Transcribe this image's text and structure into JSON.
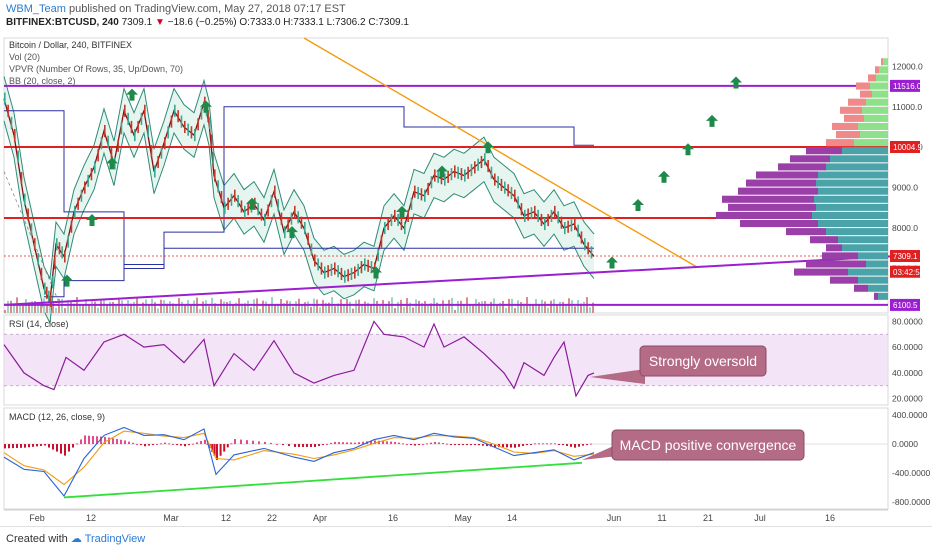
{
  "header": {
    "author": "WBM_Team",
    "published": "published on TradingView.com, May 27, 2018 07:17 EST",
    "symbol": "BITFINEX:BTCUSD, 240",
    "last": "7309.1",
    "change": "−18.6 (−0.25%)",
    "ohlc": "O:7333.0  H:7333.1  L:7306.2  C:7309.1"
  },
  "footer": {
    "created": "Created with",
    "brand": "TradingView"
  },
  "colors": {
    "price": "#8b0e0e",
    "bands": "#2e8b76",
    "bandFill": "#d6efe6",
    "vpvrUp": "#4aa3a8",
    "vpvrDown": "#9a3fa8",
    "vpvrUp2": "#8fe08a",
    "vpvrDown2": "#f08a8a",
    "red": "#e02020",
    "purple": "#9b1fd0",
    "orange": "#f39c12",
    "blue": "#2a2fa0",
    "arrow": "#1e8a4a",
    "rsi": "#8a1a9a",
    "macd": "#2b63d6",
    "signal": "#f39c12",
    "green": "#33e03a"
  },
  "chart_data": [
    {
      "type": "line",
      "title": "Bitcoin / Dollar, 240, BITFINEX",
      "legend": [
        "Vol (20)",
        "VPVR (Number Of Rows, 35, Up/Down, 70)",
        "BB (20, close, 2)"
      ],
      "x_ticks": [
        "Feb",
        "12",
        "Mar",
        "12",
        "22",
        "Apr",
        "16",
        "May",
        "14",
        "Jun",
        "11",
        "21",
        "Jul",
        "16"
      ],
      "y_ticks": [
        12000,
        11000,
        10000,
        9000,
        8000,
        7000
      ],
      "ylim": [
        5900,
        12700
      ],
      "price_labels": [
        {
          "label": "11516.0",
          "value": 11516,
          "kind": "purple"
        },
        {
          "label": "10004.9",
          "value": 10005,
          "kind": "red"
        },
        {
          "label": "7309.1",
          "value": 7309,
          "kind": "red"
        },
        {
          "label": "03:42:54",
          "value": 6920,
          "kind": "red"
        },
        {
          "label": "6100.5",
          "value": 6100,
          "kind": "purple"
        }
      ],
      "horizontal_levels": [
        {
          "value": 11516,
          "color": "purple"
        },
        {
          "value": 10005,
          "color": "red"
        },
        {
          "value": 8250,
          "color": "red"
        },
        {
          "value": 6100,
          "color": "purple"
        }
      ],
      "close_series": [
        [
          0,
          11200
        ],
        [
          10,
          10300
        ],
        [
          20,
          8700
        ],
        [
          30,
          7600
        ],
        [
          40,
          6500
        ],
        [
          46,
          6200
        ],
        [
          52,
          7600
        ],
        [
          60,
          7300
        ],
        [
          70,
          8400
        ],
        [
          80,
          9000
        ],
        [
          90,
          9500
        ],
        [
          100,
          10400
        ],
        [
          110,
          9600
        ],
        [
          120,
          10900
        ],
        [
          130,
          10300
        ],
        [
          140,
          10900
        ],
        [
          150,
          9400
        ],
        [
          160,
          10100
        ],
        [
          170,
          10900
        ],
        [
          180,
          10500
        ],
        [
          190,
          10300
        ],
        [
          200,
          11100
        ],
        [
          205,
          10600
        ],
        [
          210,
          9300
        ],
        [
          220,
          8500
        ],
        [
          230,
          8800
        ],
        [
          240,
          8400
        ],
        [
          250,
          8600
        ],
        [
          260,
          8200
        ],
        [
          270,
          8900
        ],
        [
          280,
          7900
        ],
        [
          290,
          8400
        ],
        [
          300,
          8000
        ],
        [
          310,
          7200
        ],
        [
          320,
          6900
        ],
        [
          330,
          7000
        ],
        [
          340,
          6800
        ],
        [
          350,
          6900
        ],
        [
          360,
          7100
        ],
        [
          370,
          7000
        ],
        [
          380,
          8000
        ],
        [
          390,
          8300
        ],
        [
          400,
          8000
        ],
        [
          410,
          8900
        ],
        [
          420,
          8800
        ],
        [
          430,
          9300
        ],
        [
          440,
          9200
        ],
        [
          450,
          9400
        ],
        [
          460,
          9300
        ],
        [
          470,
          9500
        ],
        [
          480,
          9700
        ],
        [
          490,
          9200
        ],
        [
          500,
          9000
        ],
        [
          510,
          8800
        ],
        [
          520,
          8300
        ],
        [
          530,
          8400
        ],
        [
          540,
          8100
        ],
        [
          550,
          8400
        ],
        [
          560,
          8000
        ],
        [
          570,
          8100
        ],
        [
          580,
          7600
        ],
        [
          590,
          7300
        ]
      ],
      "trendlines": [
        {
          "from": [
            300,
            12700
          ],
          "to": [
            692,
            7050
          ],
          "color": "orange"
        },
        {
          "from": [
            0,
            6100
          ],
          "to": [
            886,
            7300
          ],
          "color": "purple"
        }
      ],
      "projection_arrows": [
        [
          612,
          7150
        ],
        [
          638,
          8570
        ],
        [
          664,
          9270
        ],
        [
          688,
          9950
        ],
        [
          712,
          10650
        ],
        [
          736,
          11600
        ]
      ],
      "vpvr_profile": [
        {
          "price": 12100,
          "up": 5,
          "down": 2
        },
        {
          "price": 11900,
          "up": 9,
          "down": 4
        },
        {
          "price": 11700,
          "up": 12,
          "down": 8
        },
        {
          "price": 11500,
          "up": 18,
          "down": 14
        },
        {
          "price": 11300,
          "up": 16,
          "down": 12
        },
        {
          "price": 11100,
          "up": 22,
          "down": 18
        },
        {
          "price": 10900,
          "up": 26,
          "down": 22
        },
        {
          "price": 10700,
          "up": 24,
          "down": 20
        },
        {
          "price": 10500,
          "up": 30,
          "down": 26
        },
        {
          "price": 10300,
          "up": 28,
          "down": 24
        },
        {
          "price": 10100,
          "up": 34,
          "down": 28
        },
        {
          "price": 9900,
          "up": 46,
          "down": 36
        },
        {
          "price": 9700,
          "up": 58,
          "down": 40
        },
        {
          "price": 9500,
          "up": 62,
          "down": 48
        },
        {
          "price": 9300,
          "up": 70,
          "down": 62
        },
        {
          "price": 9100,
          "up": 72,
          "down": 70
        },
        {
          "price": 8900,
          "up": 70,
          "down": 80
        },
        {
          "price": 8700,
          "up": 74,
          "down": 92
        },
        {
          "price": 8500,
          "up": 72,
          "down": 88
        },
        {
          "price": 8300,
          "up": 76,
          "down": 96
        },
        {
          "price": 8100,
          "up": 70,
          "down": 78
        },
        {
          "price": 7900,
          "up": 62,
          "down": 40
        },
        {
          "price": 7700,
          "up": 50,
          "down": 28
        },
        {
          "price": 7500,
          "up": 46,
          "down": 16
        },
        {
          "price": 7300,
          "up": 30,
          "down": 36
        },
        {
          "price": 7100,
          "up": 22,
          "down": 60
        },
        {
          "price": 6900,
          "up": 40,
          "down": 54
        },
        {
          "price": 6700,
          "up": 30,
          "down": 28
        },
        {
          "price": 6500,
          "up": 20,
          "down": 14
        },
        {
          "price": 6300,
          "up": 10,
          "down": 4
        }
      ]
    },
    {
      "type": "line",
      "title": "RSI (14, close)",
      "y_ticks": [
        80,
        60,
        40,
        20
      ],
      "ylim": [
        15,
        85
      ],
      "band": [
        30,
        70
      ],
      "annotation": "Strongly oversold",
      "values": [
        [
          0,
          62
        ],
        [
          20,
          40
        ],
        [
          40,
          30
        ],
        [
          50,
          27
        ],
        [
          62,
          52
        ],
        [
          80,
          42
        ],
        [
          100,
          64
        ],
        [
          120,
          70
        ],
        [
          140,
          60
        ],
        [
          160,
          62
        ],
        [
          180,
          48
        ],
        [
          200,
          66
        ],
        [
          210,
          30
        ],
        [
          230,
          55
        ],
        [
          250,
          42
        ],
        [
          270,
          65
        ],
        [
          290,
          40
        ],
        [
          310,
          32
        ],
        [
          330,
          38
        ],
        [
          350,
          42
        ],
        [
          370,
          80
        ],
        [
          380,
          70
        ],
        [
          400,
          68
        ],
        [
          420,
          60
        ],
        [
          430,
          78
        ],
        [
          440,
          60
        ],
        [
          460,
          68
        ],
        [
          480,
          55
        ],
        [
          500,
          40
        ],
        [
          510,
          28
        ],
        [
          520,
          48
        ],
        [
          540,
          38
        ],
        [
          550,
          52
        ],
        [
          560,
          64
        ],
        [
          572,
          22
        ],
        [
          584,
          38
        ],
        [
          590,
          40
        ]
      ]
    },
    {
      "type": "line",
      "title": "MACD (12, 26, close, 9)",
      "y_ticks": [
        400,
        0,
        -400,
        -800
      ],
      "ylim": [
        -900,
        500
      ],
      "annotation": "MACD positive convergence",
      "macd": [
        [
          0,
          -180
        ],
        [
          20,
          -350
        ],
        [
          40,
          -380
        ],
        [
          60,
          -720
        ],
        [
          80,
          -200
        ],
        [
          100,
          120
        ],
        [
          120,
          230
        ],
        [
          140,
          120
        ],
        [
          160,
          130
        ],
        [
          180,
          60
        ],
        [
          200,
          210
        ],
        [
          212,
          -420
        ],
        [
          230,
          -150
        ],
        [
          260,
          -60
        ],
        [
          290,
          -180
        ],
        [
          310,
          -240
        ],
        [
          330,
          -120
        ],
        [
          350,
          -60
        ],
        [
          370,
          60
        ],
        [
          390,
          120
        ],
        [
          410,
          60
        ],
        [
          430,
          150
        ],
        [
          450,
          100
        ],
        [
          470,
          80
        ],
        [
          490,
          -40
        ],
        [
          510,
          -160
        ],
        [
          530,
          -120
        ],
        [
          550,
          -80
        ],
        [
          570,
          -220
        ],
        [
          590,
          -120
        ]
      ],
      "signal": [
        [
          0,
          -120
        ],
        [
          20,
          -300
        ],
        [
          40,
          -360
        ],
        [
          60,
          -560
        ],
        [
          80,
          -320
        ],
        [
          100,
          20
        ],
        [
          120,
          180
        ],
        [
          140,
          150
        ],
        [
          160,
          110
        ],
        [
          180,
          90
        ],
        [
          200,
          150
        ],
        [
          212,
          -200
        ],
        [
          230,
          -220
        ],
        [
          260,
          -90
        ],
        [
          290,
          -140
        ],
        [
          310,
          -200
        ],
        [
          330,
          -150
        ],
        [
          350,
          -80
        ],
        [
          370,
          10
        ],
        [
          390,
          90
        ],
        [
          410,
          80
        ],
        [
          430,
          120
        ],
        [
          450,
          110
        ],
        [
          470,
          90
        ],
        [
          490,
          0
        ],
        [
          510,
          -110
        ],
        [
          530,
          -130
        ],
        [
          550,
          -90
        ],
        [
          570,
          -170
        ],
        [
          590,
          -140
        ]
      ],
      "divergence_line": {
        "from": [
          60,
          -740
        ],
        "to": [
          578,
          -260
        ]
      }
    }
  ]
}
